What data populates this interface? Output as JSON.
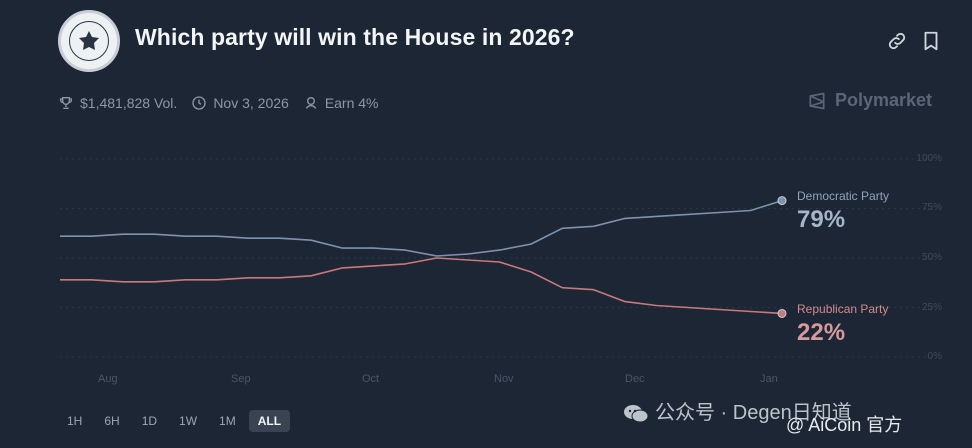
{
  "market": {
    "title": "Which party will win the House in 2026?",
    "volume": "$1,481,828 Vol.",
    "end_date": "Nov 3, 2026",
    "earn": "Earn 4%",
    "brand": "Polymarket"
  },
  "icons": {
    "seal": "house-seal-icon",
    "link": "link-icon",
    "bookmark": "bookmark-icon",
    "trophy": "trophy-icon",
    "clock": "clock-icon",
    "earn": "earn-icon",
    "brand": "polymarket-logo-icon"
  },
  "series_labels": {
    "democratic_name": "Democratic Party",
    "democratic_pct": "79%",
    "republican_name": "Republican Party",
    "republican_pct": "22%"
  },
  "ranges": [
    "1H",
    "6H",
    "1D",
    "1W",
    "1M",
    "ALL"
  ],
  "active_range": "ALL",
  "watermark": {
    "line1": "公众号 · Degen日知道",
    "line2": "@ AiCoin 官方"
  },
  "colors": {
    "background": "#1d2634",
    "democratic": "#7d93ad",
    "republican": "#c8797c",
    "grid": "#2b3546"
  },
  "chart_data": {
    "type": "line",
    "title": "",
    "xlabel": "",
    "ylabel": "",
    "ylim": [
      0,
      100
    ],
    "y_ticks": [
      "100%",
      "75%",
      "50%",
      "25%",
      "0%"
    ],
    "x_ticks": [
      "Aug",
      "Sep",
      "Oct",
      "Nov",
      "Dec",
      "Jan"
    ],
    "grid": true,
    "legend": "right-end labels",
    "x": [
      "Aug",
      "Aug",
      "Aug",
      "Aug",
      "Sep",
      "Sep",
      "Sep",
      "Oct",
      "Oct",
      "Oct",
      "Oct",
      "Nov",
      "Nov",
      "Nov",
      "Nov",
      "Nov",
      "Nov",
      "Nov",
      "Dec",
      "Dec",
      "Dec",
      "Dec",
      "Jan",
      "Jan"
    ],
    "series": [
      {
        "name": "Democratic Party",
        "values": [
          61,
          61,
          62,
          62,
          61,
          61,
          60,
          60,
          59,
          55,
          55,
          54,
          51,
          52,
          54,
          57,
          65,
          66,
          70,
          71,
          72,
          73,
          74,
          79
        ]
      },
      {
        "name": "Republican Party",
        "values": [
          39,
          39,
          38,
          38,
          39,
          39,
          40,
          40,
          41,
          45,
          46,
          47,
          50,
          49,
          48,
          43,
          35,
          34,
          28,
          26,
          25,
          24,
          23,
          22
        ]
      }
    ]
  }
}
